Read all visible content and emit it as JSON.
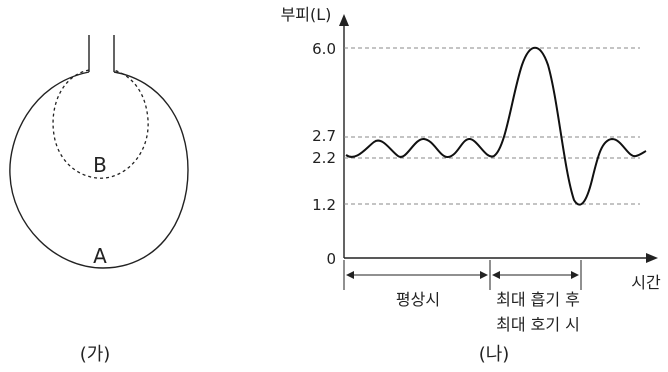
{
  "left_panel": {
    "label": "(가)",
    "outer_label": "A",
    "inner_label": "B"
  },
  "right_panel": {
    "label": "(나)",
    "y_axis_label": "부피(L)",
    "x_axis_label": "시간",
    "y_ticks": [
      "6.0",
      "2.7",
      "2.2",
      "1.2",
      "0"
    ],
    "segments": {
      "normal": "평상시",
      "max_line1": "최대 흡기 후",
      "max_line2": "최대 호기 시"
    }
  },
  "chart_data": {
    "type": "line",
    "xlabel": "시간",
    "ylabel": "부피(L)",
    "yticks": [
      0,
      1.2,
      2.2,
      2.7,
      6.0
    ],
    "reference_lines": [
      1.2,
      2.2,
      2.7,
      6.0
    ],
    "series": [
      {
        "x": [
          0,
          0.5,
          1,
          1.5,
          2,
          2.5,
          3,
          3.5,
          4,
          4.5,
          5,
          5.5,
          6,
          6.5,
          7,
          7.5,
          8,
          8.5,
          9
        ],
        "values": [
          2.25,
          2.7,
          2.2,
          2.7,
          2.2,
          2.7,
          2.2,
          3.8,
          6.0,
          4.0,
          2.2,
          1.2,
          1.2,
          2.2,
          2.7,
          2.25,
          2.7,
          2.5,
          2.3
        ]
      }
    ]
  }
}
